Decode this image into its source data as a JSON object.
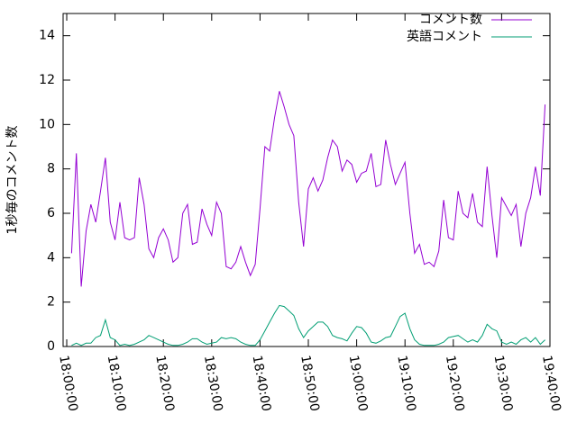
{
  "chart_data": {
    "type": "line",
    "y_label": "1秒毎のコメント数",
    "legend": "top-right",
    "x": [
      1,
      2,
      3,
      4,
      5,
      6,
      7,
      8,
      9,
      10,
      11,
      12,
      13,
      14,
      15,
      16,
      17,
      18,
      19,
      20,
      21,
      22,
      23,
      24,
      25,
      26,
      27,
      28,
      29,
      30,
      31,
      32,
      33,
      34,
      35,
      36,
      37,
      38,
      39,
      40,
      41,
      42,
      43,
      44,
      45,
      46,
      47,
      48,
      49,
      50,
      51,
      52,
      53,
      54,
      55,
      56,
      57,
      58,
      59,
      60,
      61,
      62,
      63,
      64,
      65,
      66,
      67,
      68,
      69,
      70,
      71,
      72,
      73,
      74,
      75,
      76,
      77,
      78,
      79,
      80,
      81,
      82,
      83,
      84,
      85,
      86,
      87,
      88,
      89,
      90,
      91,
      92,
      93,
      94,
      95,
      96,
      97,
      98,
      99
    ],
    "xlim": [
      -0.75,
      100
    ],
    "xticks": [
      {
        "value": 0,
        "label": "18:00:00"
      },
      {
        "value": 10,
        "label": "18:10:00"
      },
      {
        "value": 20,
        "label": "18:20:00"
      },
      {
        "value": 30,
        "label": "18:30:00"
      },
      {
        "value": 40,
        "label": "18:40:00"
      },
      {
        "value": 50,
        "label": "18:50:00"
      },
      {
        "value": 60,
        "label": "19:00:00"
      },
      {
        "value": 70,
        "label": "19:10:00"
      },
      {
        "value": 80,
        "label": "19:20:00"
      },
      {
        "value": 90,
        "label": "19:30:00"
      },
      {
        "value": 100,
        "label": "19:40:00"
      }
    ],
    "ylim": [
      0,
      15
    ],
    "yticks": [
      0,
      2,
      4,
      6,
      8,
      10,
      12,
      14
    ],
    "series": [
      {
        "name": "コメント数",
        "color": "#9400d3",
        "values": [
          4.2,
          8.7,
          2.7,
          5.2,
          6.4,
          5.6,
          7.0,
          8.5,
          5.6,
          4.8,
          6.5,
          4.9,
          4.8,
          4.9,
          7.6,
          6.4,
          4.4,
          4.0,
          4.9,
          5.3,
          4.8,
          3.8,
          4.0,
          6.0,
          6.4,
          4.6,
          4.7,
          6.2,
          5.5,
          5.0,
          6.5,
          6.0,
          3.6,
          3.5,
          3.8,
          4.5,
          3.8,
          3.2,
          3.7,
          6.2,
          9.0,
          8.8,
          10.3,
          11.5,
          10.8,
          10.0,
          9.5,
          6.5,
          4.5,
          7.1,
          7.6,
          7.0,
          7.5,
          8.5,
          9.3,
          9.0,
          7.9,
          8.4,
          8.2,
          7.4,
          7.8,
          7.9,
          8.7,
          7.2,
          7.3,
          9.3,
          8.2,
          7.3,
          7.8,
          8.3,
          6.0,
          4.2,
          4.6,
          3.7,
          3.8,
          3.6,
          4.3,
          6.6,
          4.9,
          4.8,
          7.0,
          6.0,
          5.8,
          6.9,
          5.6,
          5.4,
          8.1,
          5.9,
          4.0,
          6.7,
          6.3,
          5.9,
          6.4,
          4.5,
          6.0,
          6.7,
          8.1,
          6.8,
          10.9
        ]
      },
      {
        "name": "英語コメント",
        "color": "#009e73",
        "values": [
          0.05,
          0.15,
          0.05,
          0.15,
          0.15,
          0.4,
          0.5,
          1.2,
          0.4,
          0.3,
          0.05,
          0.1,
          0.05,
          0.1,
          0.2,
          0.3,
          0.5,
          0.4,
          0.3,
          0.2,
          0.1,
          0.05,
          0.05,
          0.1,
          0.2,
          0.35,
          0.35,
          0.2,
          0.1,
          0.15,
          0.2,
          0.4,
          0.35,
          0.4,
          0.35,
          0.2,
          0.1,
          0.05,
          0.05,
          0.3,
          0.7,
          1.1,
          1.5,
          1.85,
          1.8,
          1.6,
          1.4,
          0.8,
          0.4,
          0.7,
          0.9,
          1.1,
          1.1,
          0.9,
          0.5,
          0.4,
          0.35,
          0.25,
          0.6,
          0.9,
          0.85,
          0.6,
          0.2,
          0.15,
          0.25,
          0.4,
          0.45,
          0.9,
          1.35,
          1.5,
          0.8,
          0.3,
          0.1,
          0.05,
          0.05,
          0.05,
          0.1,
          0.2,
          0.4,
          0.45,
          0.5,
          0.35,
          0.2,
          0.3,
          0.2,
          0.5,
          1.0,
          0.8,
          0.7,
          0.2,
          0.1,
          0.2,
          0.1,
          0.3,
          0.4,
          0.2,
          0.4,
          0.1,
          0.3
        ]
      }
    ]
  }
}
